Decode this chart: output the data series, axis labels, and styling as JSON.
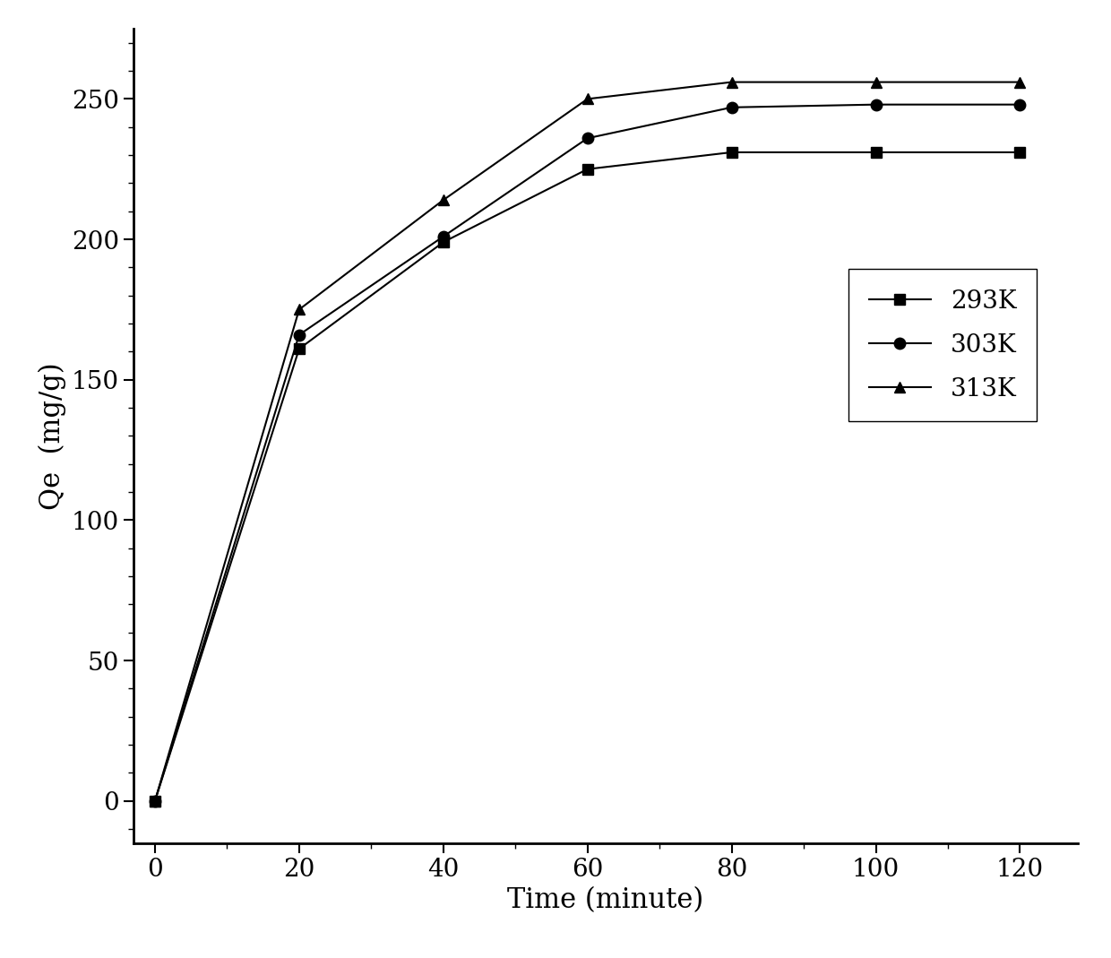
{
  "series": [
    {
      "label": "293K",
      "x": [
        0,
        20,
        40,
        60,
        80,
        100,
        120
      ],
      "y": [
        0,
        161,
        199,
        225,
        231,
        231,
        231
      ],
      "marker": "s",
      "color": "#000000",
      "markersize": 9
    },
    {
      "label": "303K",
      "x": [
        0,
        20,
        40,
        60,
        80,
        100,
        120
      ],
      "y": [
        0,
        166,
        201,
        236,
        247,
        248,
        248
      ],
      "marker": "o",
      "color": "#000000",
      "markersize": 9
    },
    {
      "label": "313K",
      "x": [
        0,
        20,
        40,
        60,
        80,
        100,
        120
      ],
      "y": [
        0,
        175,
        214,
        250,
        256,
        256,
        256
      ],
      "marker": "^",
      "color": "#000000",
      "markersize": 9
    }
  ],
  "xlabel": "Time (minute)",
  "ylabel": "Qe  (mg/g)",
  "xlim": [
    -3,
    128
  ],
  "ylim": [
    -15,
    275
  ],
  "xticks": [
    0,
    20,
    40,
    60,
    80,
    100,
    120
  ],
  "yticks": [
    0,
    50,
    100,
    150,
    200,
    250
  ],
  "linewidth": 1.5,
  "xlabel_fontsize": 22,
  "ylabel_fontsize": 22,
  "tick_fontsize": 20,
  "legend_fontsize": 20,
  "background_color": "#ffffff",
  "spine_linewidth": 2.0
}
